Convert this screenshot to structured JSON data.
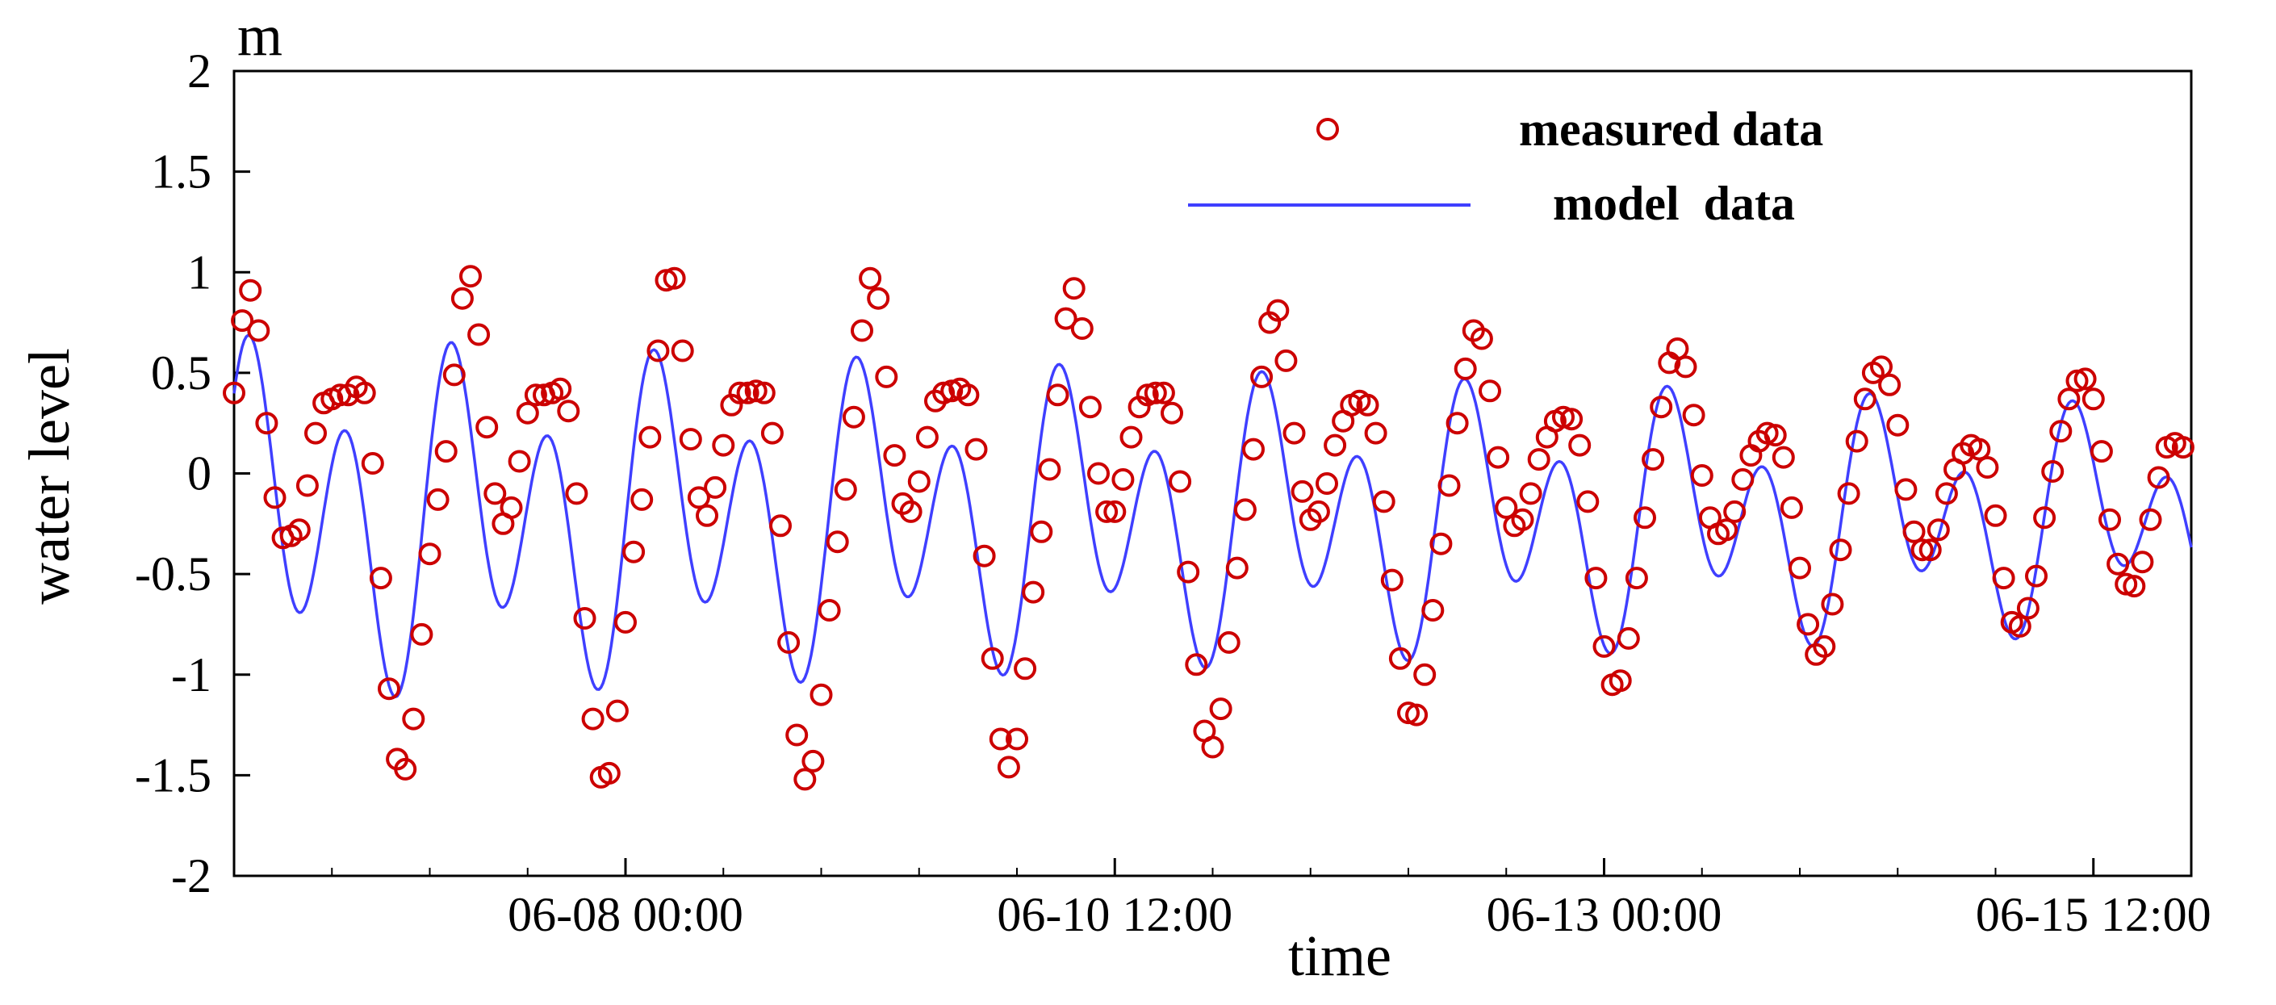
{
  "chart_data": {
    "type": "line",
    "title": "",
    "xlabel": "time",
    "ylabel": "water level",
    "yunit": "m",
    "ylim": [
      -2,
      2
    ],
    "yticks": [
      -2,
      -1.5,
      -1,
      -0.5,
      0,
      0.5,
      1,
      1.5,
      2
    ],
    "ytick_labels": [
      "-2",
      "-1.5",
      "-1",
      "-0.5",
      "0",
      "0.5",
      "1",
      "1.5",
      "2"
    ],
    "x_unit": "hours since 06-06 00:00",
    "xlim": [
      0,
      240
    ],
    "xticks": [
      48,
      108,
      168,
      228
    ],
    "xtick_labels": [
      "06-08 00:00",
      "06-10 12:00",
      "06-13 00:00",
      "06-15 12:00"
    ],
    "minor_xtick_step_hours": 12,
    "legend": {
      "position": "top-right",
      "entries": [
        "measured data",
        "model  data"
      ]
    },
    "series": [
      {
        "name": "measured data",
        "style": "circle-markers",
        "color": "#cc0000",
        "points": [
          [
            0,
            0.4
          ],
          [
            1,
            0.76
          ],
          [
            2,
            0.91
          ],
          [
            3,
            0.71
          ],
          [
            4,
            0.25
          ],
          [
            5,
            -0.12
          ],
          [
            6,
            -0.32
          ],
          [
            7,
            -0.31
          ],
          [
            8,
            -0.28
          ],
          [
            9,
            -0.06
          ],
          [
            10,
            0.2
          ],
          [
            11,
            0.35
          ],
          [
            12,
            0.37
          ],
          [
            13,
            0.39
          ],
          [
            14,
            0.39
          ],
          [
            15,
            0.43
          ],
          [
            16,
            0.4
          ],
          [
            17,
            0.05
          ],
          [
            18,
            -0.52
          ],
          [
            19,
            -1.07
          ],
          [
            20,
            -1.42
          ],
          [
            21,
            -1.47
          ],
          [
            22,
            -1.22
          ],
          [
            23,
            -0.8
          ],
          [
            24,
            -0.4
          ],
          [
            25,
            -0.13
          ],
          [
            26,
            0.11
          ],
          [
            27,
            0.49
          ],
          [
            28,
            0.87
          ],
          [
            29,
            0.98
          ],
          [
            30,
            0.69
          ],
          [
            31,
            0.23
          ],
          [
            32,
            -0.1
          ],
          [
            33,
            -0.25
          ],
          [
            34,
            -0.17
          ],
          [
            35,
            0.06
          ],
          [
            36,
            0.3
          ],
          [
            37,
            0.39
          ],
          [
            38,
            0.39
          ],
          [
            39,
            0.4
          ],
          [
            40,
            0.42
          ],
          [
            41,
            0.31
          ],
          [
            42,
            -0.1
          ],
          [
            43,
            -0.72
          ],
          [
            44,
            -1.22
          ],
          [
            45,
            -1.51
          ],
          [
            46,
            -1.49
          ],
          [
            47,
            -1.18
          ],
          [
            48,
            -0.74
          ],
          [
            49,
            -0.39
          ],
          [
            50,
            -0.13
          ],
          [
            51,
            0.18
          ],
          [
            52,
            0.61
          ],
          [
            53,
            0.96
          ],
          [
            54,
            0.97
          ],
          [
            55,
            0.61
          ],
          [
            56,
            0.17
          ],
          [
            57,
            -0.12
          ],
          [
            58,
            -0.21
          ],
          [
            59,
            -0.07
          ],
          [
            60,
            0.14
          ],
          [
            61,
            0.34
          ],
          [
            62,
            0.4
          ],
          [
            63,
            0.4
          ],
          [
            64,
            0.41
          ],
          [
            65,
            0.4
          ],
          [
            66,
            0.2
          ],
          [
            67,
            -0.26
          ],
          [
            68,
            -0.84
          ],
          [
            69,
            -1.3
          ],
          [
            70,
            -1.52
          ],
          [
            71,
            -1.43
          ],
          [
            72,
            -1.1
          ],
          [
            73,
            -0.68
          ],
          [
            74,
            -0.34
          ],
          [
            75,
            -0.08
          ],
          [
            76,
            0.28
          ],
          [
            77,
            0.71
          ],
          [
            78,
            0.97
          ],
          [
            79,
            0.87
          ],
          [
            80,
            0.48
          ],
          [
            81,
            0.09
          ],
          [
            82,
            -0.15
          ],
          [
            83,
            -0.19
          ],
          [
            84,
            -0.04
          ],
          [
            85,
            0.18
          ],
          [
            86,
            0.36
          ],
          [
            87,
            0.4
          ],
          [
            88,
            0.41
          ],
          [
            89,
            0.42
          ],
          [
            90,
            0.39
          ],
          [
            91,
            0.12
          ],
          [
            92,
            -0.41
          ],
          [
            93,
            -0.92
          ],
          [
            94,
            -1.32
          ],
          [
            95,
            -1.46
          ],
          [
            96,
            -1.32
          ],
          [
            97,
            -0.97
          ],
          [
            98,
            -0.59
          ],
          [
            99,
            -0.29
          ],
          [
            100,
            0.02
          ],
          [
            101,
            0.39
          ],
          [
            102,
            0.77
          ],
          [
            103,
            0.92
          ],
          [
            104,
            0.72
          ],
          [
            105,
            0.33
          ],
          [
            106,
            0.0
          ],
          [
            107,
            -0.19
          ],
          [
            108,
            -0.19
          ],
          [
            109,
            -0.03
          ],
          [
            110,
            0.18
          ],
          [
            111,
            0.33
          ],
          [
            112,
            0.39
          ],
          [
            113,
            0.4
          ],
          [
            114,
            0.4
          ],
          [
            115,
            0.3
          ],
          [
            116,
            -0.04
          ],
          [
            117,
            -0.49
          ],
          [
            118,
            -0.95
          ],
          [
            119,
            -1.28
          ],
          [
            120,
            -1.36
          ],
          [
            121,
            -1.17
          ],
          [
            122,
            -0.84
          ],
          [
            123,
            -0.47
          ],
          [
            124,
            -0.18
          ],
          [
            125,
            0.12
          ],
          [
            126,
            0.48
          ],
          [
            127,
            0.75
          ],
          [
            128,
            0.81
          ],
          [
            129,
            0.56
          ],
          [
            130,
            0.2
          ],
          [
            131,
            -0.09
          ],
          [
            132,
            -0.23
          ],
          [
            133,
            -0.19
          ],
          [
            134,
            -0.05
          ],
          [
            135,
            0.14
          ],
          [
            136,
            0.26
          ],
          [
            137,
            0.34
          ],
          [
            138,
            0.36
          ],
          [
            139,
            0.34
          ],
          [
            140,
            0.2
          ],
          [
            141,
            -0.14
          ],
          [
            142,
            -0.53
          ],
          [
            143,
            -0.92
          ],
          [
            144,
            -1.19
          ],
          [
            145,
            -1.2
          ],
          [
            146,
            -1.0
          ],
          [
            147,
            -0.68
          ],
          [
            148,
            -0.35
          ],
          [
            149,
            -0.06
          ],
          [
            150,
            0.25
          ],
          [
            151,
            0.52
          ],
          [
            152,
            0.71
          ],
          [
            153,
            0.67
          ],
          [
            154,
            0.41
          ],
          [
            155,
            0.08
          ],
          [
            156,
            -0.17
          ],
          [
            157,
            -0.26
          ],
          [
            158,
            -0.23
          ],
          [
            159,
            -0.1
          ],
          [
            160,
            0.07
          ],
          [
            161,
            0.18
          ],
          [
            162,
            0.26
          ],
          [
            163,
            0.28
          ],
          [
            164,
            0.27
          ],
          [
            165,
            0.14
          ],
          [
            166,
            -0.14
          ],
          [
            167,
            -0.52
          ],
          [
            168,
            -0.86
          ],
          [
            169,
            -1.05
          ],
          [
            170,
            -1.03
          ],
          [
            171,
            -0.82
          ],
          [
            172,
            -0.52
          ],
          [
            173,
            -0.22
          ],
          [
            174,
            0.07
          ],
          [
            175,
            0.33
          ],
          [
            176,
            0.55
          ],
          [
            177,
            0.62
          ],
          [
            178,
            0.53
          ],
          [
            179,
            0.29
          ],
          [
            180,
            -0.01
          ],
          [
            181,
            -0.22
          ],
          [
            182,
            -0.3
          ],
          [
            183,
            -0.28
          ],
          [
            184,
            -0.19
          ],
          [
            185,
            -0.03
          ],
          [
            186,
            0.09
          ],
          [
            187,
            0.16
          ],
          [
            188,
            0.2
          ],
          [
            189,
            0.19
          ],
          [
            190,
            0.08
          ],
          [
            191,
            -0.17
          ],
          [
            192,
            -0.47
          ],
          [
            193,
            -0.75
          ],
          [
            194,
            -0.9
          ],
          [
            195,
            -0.86
          ],
          [
            196,
            -0.65
          ],
          [
            197,
            -0.38
          ],
          [
            198,
            -0.1
          ],
          [
            199,
            0.16
          ],
          [
            200,
            0.37
          ],
          [
            201,
            0.5
          ],
          [
            202,
            0.53
          ],
          [
            203,
            0.44
          ],
          [
            204,
            0.24
          ],
          [
            205,
            -0.08
          ],
          [
            206,
            -0.29
          ],
          [
            207,
            -0.38
          ],
          [
            208,
            -0.38
          ],
          [
            209,
            -0.28
          ],
          [
            210,
            -0.1
          ],
          [
            211,
            0.02
          ],
          [
            212,
            0.1
          ],
          [
            213,
            0.14
          ],
          [
            214,
            0.12
          ],
          [
            215,
            0.03
          ],
          [
            216,
            -0.21
          ],
          [
            217,
            -0.52
          ],
          [
            218,
            -0.74
          ],
          [
            219,
            -0.76
          ],
          [
            220,
            -0.67
          ],
          [
            221,
            -0.51
          ],
          [
            222,
            -0.22
          ],
          [
            223,
            0.01
          ],
          [
            224,
            0.21
          ],
          [
            225,
            0.37
          ],
          [
            226,
            0.46
          ],
          [
            227,
            0.47
          ],
          [
            228,
            0.37
          ],
          [
            229,
            0.11
          ],
          [
            230,
            -0.23
          ],
          [
            231,
            -0.45
          ],
          [
            232,
            -0.55
          ],
          [
            233,
            -0.56
          ],
          [
            234,
            -0.44
          ],
          [
            235,
            -0.23
          ],
          [
            236,
            -0.02
          ],
          [
            237,
            0.13
          ],
          [
            238,
            0.15
          ],
          [
            239,
            0.13
          ]
        ]
      },
      {
        "name": "model  data",
        "style": "line",
        "color": "#3f3fff",
        "curve_model": "mean + A*cos(2*pi*(t-t1)/12.42) + B*cos(2*pi*(t-t2)/24.84), A and B decay linearly from t=0 to t=240",
        "mean": -0.23,
        "semidiurnal_period_h": 12.42,
        "semidiurnal_amplitude_start": 0.68,
        "semidiurnal_amplitude_end": 0.38,
        "semidiurnal_phase_h": 1.5,
        "diurnal_period_h": 24.84,
        "diurnal_amplitude_start": 0.32,
        "diurnal_amplitude_end": 0.25,
        "diurnal_phase_h": 4.5
      }
    ]
  }
}
